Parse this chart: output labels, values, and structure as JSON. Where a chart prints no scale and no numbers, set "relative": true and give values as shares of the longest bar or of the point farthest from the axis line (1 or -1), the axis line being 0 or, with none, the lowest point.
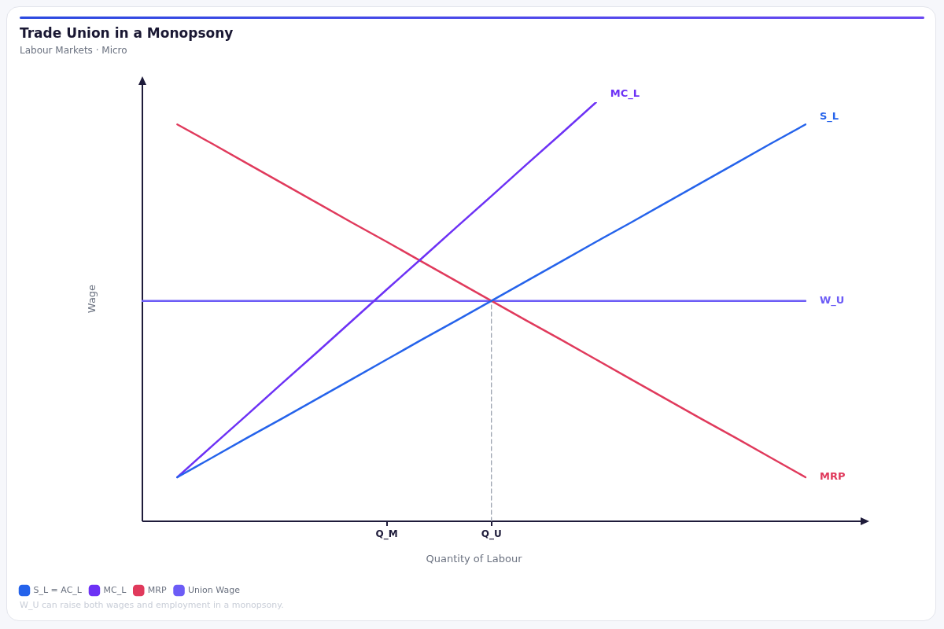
{
  "chart_data": {
    "type": "line",
    "title": "Trade Union in a Monopsony",
    "subtitle": "Labour Markets · Micro",
    "xlabel": "Quantity of Labour",
    "ylabel": "Wage",
    "relative": true,
    "categories": [
      null,
      null,
      null,
      null,
      null,
      null,
      null,
      "Q_M",
      null,
      null,
      "Q_U",
      null,
      null,
      null,
      null,
      null,
      null,
      null,
      null,
      null
    ],
    "series": [
      {
        "name": "S_L = AC_L",
        "color": "#2563eb",
        "values": [
          null,
          0.105,
          0.152,
          0.199,
          0.245,
          0.292,
          0.339,
          0.386,
          0.433,
          0.479,
          0.526,
          0.573,
          0.62,
          0.667,
          0.713,
          0.76,
          0.807,
          0.854,
          0.901,
          0.947
        ]
      },
      {
        "name": "MC_L",
        "color": "#6d32f5",
        "values": [
          null,
          0.105,
          0.18,
          0.254,
          0.329,
          0.403,
          0.478,
          0.553,
          0.627,
          0.702,
          0.776,
          0.851,
          0.925,
          1.0,
          null,
          null,
          null,
          null,
          null,
          null
        ]
      },
      {
        "name": "MRP",
        "color": "#e03a5c",
        "values": [
          null,
          0.947,
          0.901,
          0.854,
          0.807,
          0.76,
          0.713,
          0.667,
          0.62,
          0.573,
          0.526,
          0.479,
          0.433,
          0.386,
          0.339,
          0.292,
          0.245,
          0.199,
          0.152,
          0.105
        ]
      },
      {
        "name": "Union Wage",
        "color": "#6c5cf6",
        "values": [
          0.526,
          0.526,
          0.526,
          0.526,
          0.526,
          0.526,
          0.526,
          0.526,
          0.526,
          0.526,
          0.526,
          0.526,
          0.526,
          0.526,
          0.526,
          0.526,
          0.526,
          0.526,
          0.526,
          0.526
        ]
      },
      {
        "type": "line",
        "color": "#9ca3af",
        "line_style": "dashed",
        "x": [
          "Q_U",
          "Q_U"
        ],
        "values": [
          0,
          0.526
        ]
      }
    ],
    "annotations": [
      "S_L",
      "MC_L",
      "MRP",
      "W_U",
      "W_U can raise both wages and employment in a monopsony."
    ],
    "legend": "bottom left"
  }
}
